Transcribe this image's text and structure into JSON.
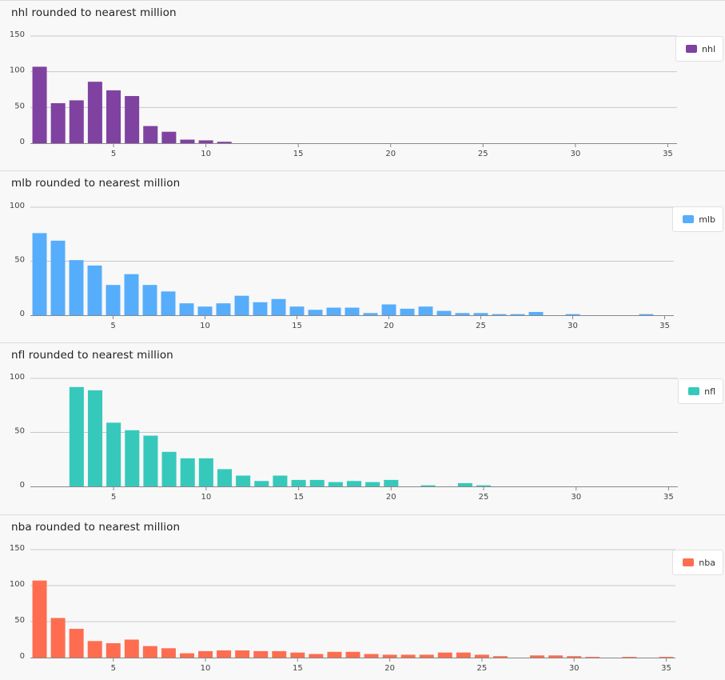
{
  "chart_data": [
    {
      "type": "bar",
      "title": "nhl rounded to nearest million",
      "series": [
        {
          "name": "nhl",
          "color": "#8042a0",
          "x": [
            1,
            2,
            3,
            4,
            5,
            6,
            7,
            8,
            9,
            10,
            11
          ],
          "values": [
            107,
            56,
            60,
            86,
            74,
            66,
            24,
            16,
            5,
            4,
            2
          ]
        }
      ],
      "ylim": [
        0,
        150
      ],
      "yticks": [
        0,
        50,
        100,
        150
      ],
      "xlim": [
        0.5,
        35.5
      ],
      "xticks": [
        5,
        10,
        15,
        20,
        25,
        30,
        35
      ],
      "grid": true,
      "legend": "top-right"
    },
    {
      "type": "bar",
      "title": "mlb rounded to nearest million",
      "series": [
        {
          "name": "mlb",
          "color": "#56adfb",
          "x": [
            1,
            2,
            3,
            4,
            5,
            6,
            7,
            8,
            9,
            10,
            11,
            12,
            13,
            14,
            15,
            16,
            17,
            18,
            19,
            20,
            21,
            22,
            23,
            24,
            25,
            26,
            27,
            28,
            29,
            30,
            31,
            32,
            33,
            34,
            35
          ],
          "values": [
            76,
            69,
            51,
            46,
            28,
            38,
            28,
            22,
            11,
            8,
            11,
            18,
            12,
            15,
            8,
            5,
            7,
            7,
            2,
            10,
            6,
            8,
            4,
            2,
            2,
            1,
            1,
            3,
            0,
            1,
            0,
            0,
            0,
            1,
            0
          ]
        }
      ],
      "ylim": [
        0,
        100
      ],
      "yticks": [
        0,
        50,
        100
      ],
      "xlim": [
        0.5,
        35.5
      ],
      "xticks": [
        5,
        10,
        15,
        20,
        25,
        30,
        35
      ],
      "grid": true,
      "legend": "top-right"
    },
    {
      "type": "bar",
      "title": "nfl rounded to nearest million",
      "series": [
        {
          "name": "nfl",
          "color": "#36c9bb",
          "x": [
            3,
            4,
            5,
            6,
            7,
            8,
            9,
            10,
            11,
            12,
            13,
            14,
            15,
            16,
            17,
            18,
            19,
            20,
            21,
            22,
            23,
            24,
            25
          ],
          "values": [
            92,
            89,
            59,
            52,
            47,
            32,
            26,
            26,
            16,
            10,
            5,
            10,
            6,
            6,
            4,
            5,
            4,
            6,
            0,
            1,
            0,
            3,
            1
          ]
        }
      ],
      "ylim": [
        0,
        100
      ],
      "yticks": [
        0,
        50,
        100
      ],
      "xlim": [
        0.5,
        35.5
      ],
      "xticks": [
        5,
        10,
        15,
        20,
        25,
        30,
        35
      ],
      "grid": true,
      "legend": "top-right"
    },
    {
      "type": "bar",
      "title": "nba rounded to nearest million",
      "series": [
        {
          "name": "nba",
          "color": "#ff6d50",
          "x": [
            1,
            2,
            3,
            4,
            5,
            6,
            7,
            8,
            9,
            10,
            11,
            12,
            13,
            14,
            15,
            16,
            17,
            18,
            19,
            20,
            21,
            22,
            23,
            24,
            25,
            26,
            27,
            28,
            29,
            30,
            31,
            32,
            33,
            34,
            35
          ],
          "values": [
            107,
            55,
            40,
            23,
            20,
            25,
            16,
            13,
            6,
            9,
            10,
            10,
            9,
            9,
            7,
            5,
            8,
            8,
            5,
            4,
            4,
            4,
            7,
            7,
            4,
            2,
            0,
            3,
            3,
            2,
            1,
            0,
            1,
            0,
            1
          ]
        }
      ],
      "ylim": [
        0,
        150
      ],
      "yticks": [
        0,
        50,
        100,
        150
      ],
      "xlim": [
        0.5,
        35.5
      ],
      "xticks": [
        5,
        10,
        15,
        20,
        25,
        30,
        35
      ],
      "grid": true,
      "legend": "top-right"
    }
  ]
}
